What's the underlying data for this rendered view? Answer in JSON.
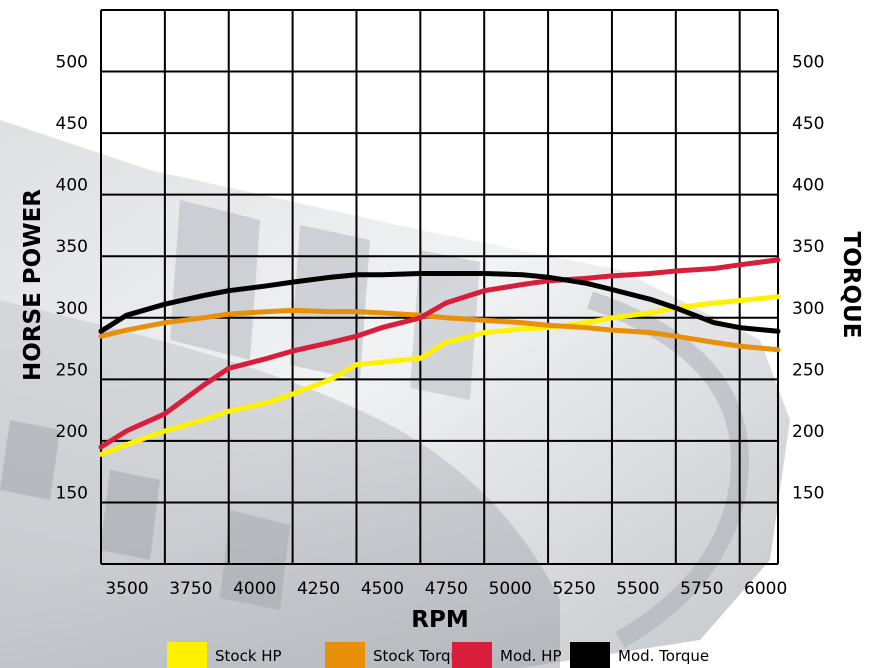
{
  "chart_data": {
    "type": "line",
    "title": "",
    "xlabel": "RPM",
    "ylabel_left": "HORSE POWER",
    "ylabel_right": "TORQUE",
    "x_ticks": [
      "3500",
      "3750",
      "4000",
      "4250",
      "4500",
      "4750",
      "5000",
      "5250",
      "5500",
      "5750",
      "6000"
    ],
    "y_ticks": [
      "150",
      "200",
      "250",
      "300",
      "350",
      "400",
      "450",
      "500"
    ],
    "xlim": [
      3500,
      6150
    ],
    "ylim": [
      100,
      550
    ],
    "grid": true,
    "legend_position": "bottom",
    "series": [
      {
        "name": "Stock HP",
        "color": "#FFF200",
        "x": [
          3500,
          3600,
          3750,
          3900,
          4000,
          4150,
          4250,
          4400,
          4500,
          4600,
          4750,
          4850,
          5000,
          5150,
          5250,
          5400,
          5500,
          5650,
          5750,
          5900,
          6000,
          6150
        ],
        "y": [
          189,
          197,
          208,
          217,
          224,
          231,
          238,
          250,
          262,
          264,
          267,
          280,
          288,
          291,
          292,
          296,
          300,
          304,
          308,
          312,
          314,
          317
        ]
      },
      {
        "name": "Stock Torque",
        "color": "#E8900A",
        "x": [
          3500,
          3600,
          3750,
          3900,
          4000,
          4150,
          4250,
          4400,
          4500,
          4600,
          4750,
          4850,
          5000,
          5150,
          5250,
          5400,
          5500,
          5650,
          5750,
          5900,
          6000,
          6150
        ],
        "y": [
          285,
          290,
          296,
          300,
          303,
          305,
          306,
          305,
          305,
          304,
          302,
          300,
          298,
          296,
          294,
          292,
          290,
          288,
          285,
          280,
          277,
          274
        ]
      },
      {
        "name": "Mod. HP",
        "color": "#D81E3A",
        "x": [
          3500,
          3600,
          3750,
          3900,
          4000,
          4150,
          4250,
          4400,
          4500,
          4600,
          4750,
          4850,
          5000,
          5150,
          5250,
          5400,
          5500,
          5650,
          5750,
          5900,
          6000,
          6150
        ],
        "y": [
          195,
          208,
          222,
          245,
          259,
          267,
          273,
          280,
          285,
          292,
          300,
          312,
          322,
          327,
          330,
          332,
          334,
          336,
          338,
          340,
          343,
          347
        ]
      },
      {
        "name": "Mod. Torque",
        "color": "#000000",
        "x": [
          3500,
          3600,
          3750,
          3900,
          4000,
          4150,
          4250,
          4400,
          4500,
          4600,
          4750,
          4850,
          5000,
          5150,
          5250,
          5400,
          5500,
          5650,
          5750,
          5900,
          6000,
          6150
        ],
        "y": [
          289,
          302,
          311,
          318,
          322,
          326,
          329,
          333,
          335,
          335,
          336,
          336,
          336,
          335,
          333,
          328,
          323,
          315,
          308,
          296,
          292,
          289
        ]
      }
    ]
  }
}
